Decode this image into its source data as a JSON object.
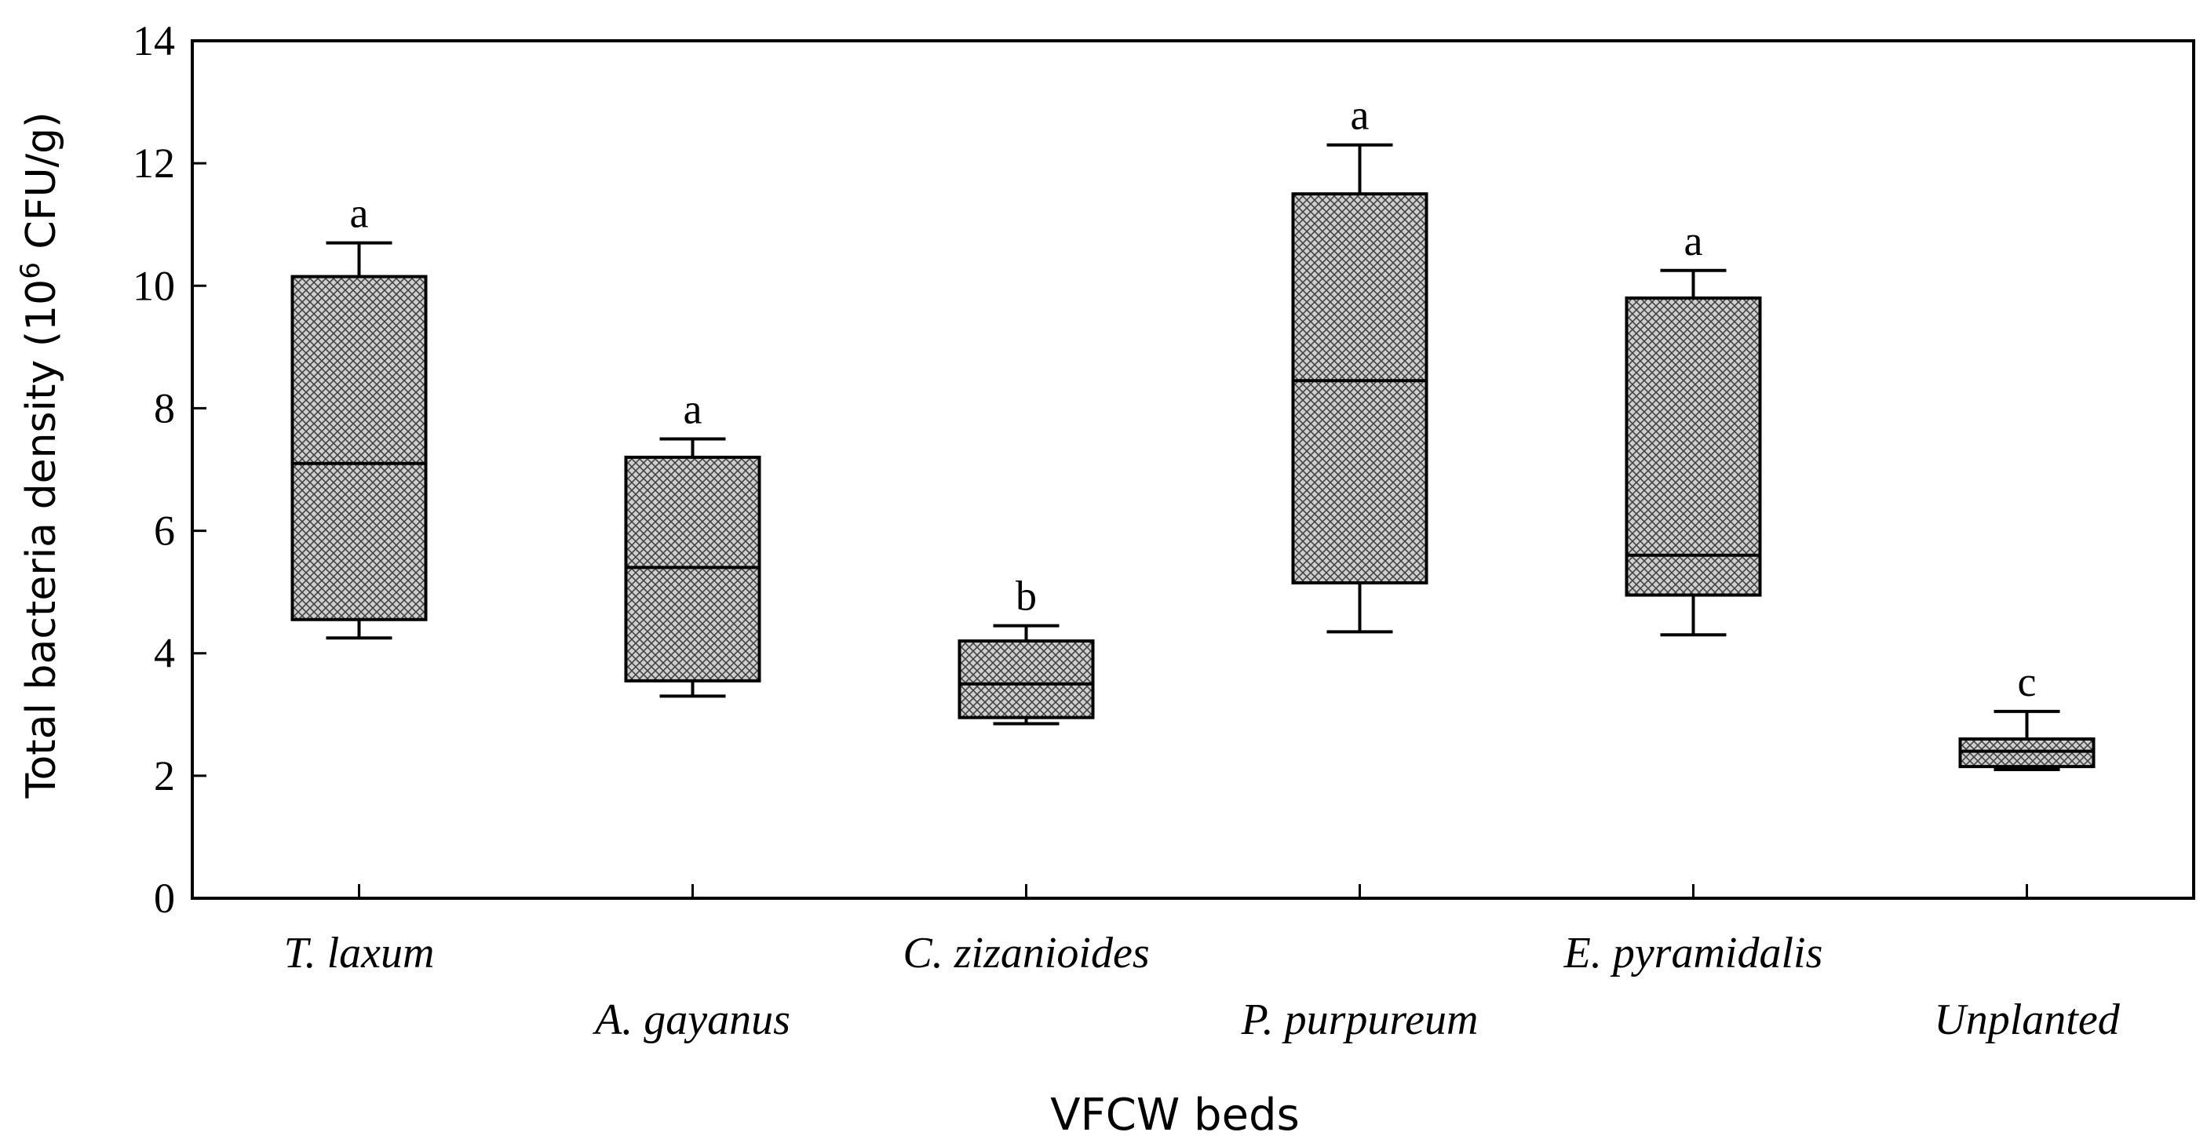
{
  "chart_data": {
    "type": "boxplot",
    "xlabel": "VFCW beds",
    "ylabel": {
      "prefix": "Total bacteria density (10",
      "superscript": "6",
      "suffix": " CFU/g)"
    },
    "ylim": [
      0,
      14
    ],
    "yticks": [
      0,
      2,
      4,
      6,
      8,
      10,
      12,
      14
    ],
    "categories": [
      "T. laxum",
      "A. gayanus",
      "C. zizanioides",
      "P. purpureum",
      "E. pyramidalis",
      "Unplanted"
    ],
    "boxes": [
      {
        "name": "T. laxum",
        "whisker_low": 4.25,
        "q1": 4.55,
        "median": 7.1,
        "q3": 10.15,
        "whisker_high": 10.7,
        "group": "a"
      },
      {
        "name": "A. gayanus",
        "whisker_low": 3.3,
        "q1": 3.55,
        "median": 5.4,
        "q3": 7.2,
        "whisker_high": 7.5,
        "group": "a"
      },
      {
        "name": "C. zizanioides",
        "whisker_low": 2.85,
        "q1": 2.95,
        "median": 3.5,
        "q3": 4.2,
        "whisker_high": 4.45,
        "group": "b"
      },
      {
        "name": "P. purpureum",
        "whisker_low": 4.35,
        "q1": 5.15,
        "median": 8.45,
        "q3": 11.5,
        "whisker_high": 12.3,
        "group": "a"
      },
      {
        "name": "E. pyramidalis",
        "whisker_low": 4.3,
        "q1": 4.95,
        "median": 5.6,
        "q3": 9.8,
        "whisker_high": 10.25,
        "group": "a"
      },
      {
        "name": "Unplanted",
        "whisker_low": 2.1,
        "q1": 2.15,
        "median": 2.4,
        "q3": 2.6,
        "whisker_high": 3.05,
        "group": "c"
      }
    ],
    "fill_pattern": "crosshatch",
    "grid": false
  }
}
